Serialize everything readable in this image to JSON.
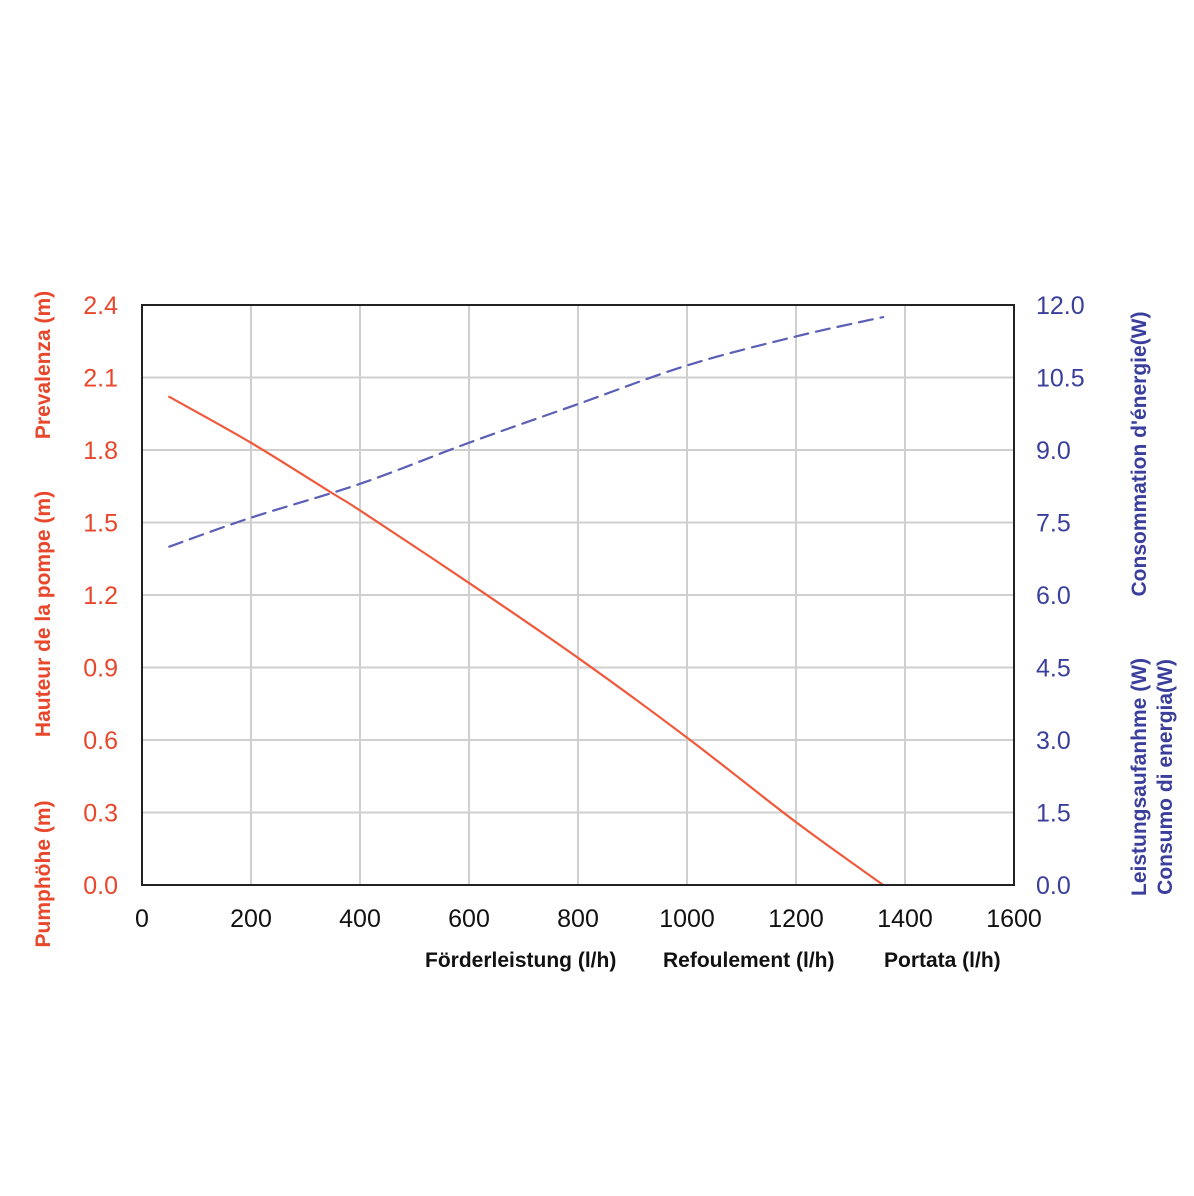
{
  "chart_data": {
    "type": "line",
    "x_axis": {
      "ticks": [
        "0",
        "200",
        "400",
        "600",
        "800",
        "1000",
        "1200",
        "1400",
        "1600"
      ],
      "range": [
        0,
        1600
      ],
      "titles": [
        "Förderleistung (l/h)",
        "Refoulement (l/h)",
        "Portata (l/h)"
      ]
    },
    "y_left": {
      "ticks": [
        "0.0",
        "0.3",
        "0.6",
        "0.9",
        "1.2",
        "1.5",
        "1.8",
        "2.1",
        "2.4"
      ],
      "range": [
        0,
        2.4
      ],
      "titles": [
        "Pumphöhe (m)",
        "Hauteur de la pompe (m)",
        "Prevalenza (m)"
      ],
      "color": "#e8472b"
    },
    "y_right": {
      "ticks": [
        "0.0",
        "1.5",
        "3.0",
        "4.5",
        "6.0",
        "7.5",
        "9.0",
        "10.5",
        "12.0"
      ],
      "range": [
        0,
        12
      ],
      "titles": [
        "Leistungsaufanhme (W)",
        "Consommation d'énergie(W)",
        "Consumo di energia(W)"
      ],
      "color": "#3b3f9c"
    },
    "grid": true,
    "series": [
      {
        "axis": "left",
        "style": "solid",
        "color": "#f05a3c",
        "x": [
          50,
          200,
          350,
          400,
          600,
          800,
          1000,
          1200,
          1360
        ],
        "y": [
          2.02,
          1.83,
          1.62,
          1.55,
          1.25,
          0.94,
          0.61,
          0.26,
          0.0
        ]
      },
      {
        "axis": "right",
        "style": "dashed",
        "color": "#5b5fb5",
        "x": [
          50,
          200,
          400,
          600,
          800,
          1000,
          1200,
          1360
        ],
        "y": [
          7.0,
          7.6,
          8.3,
          9.15,
          9.95,
          10.75,
          11.35,
          11.75
        ]
      }
    ]
  }
}
